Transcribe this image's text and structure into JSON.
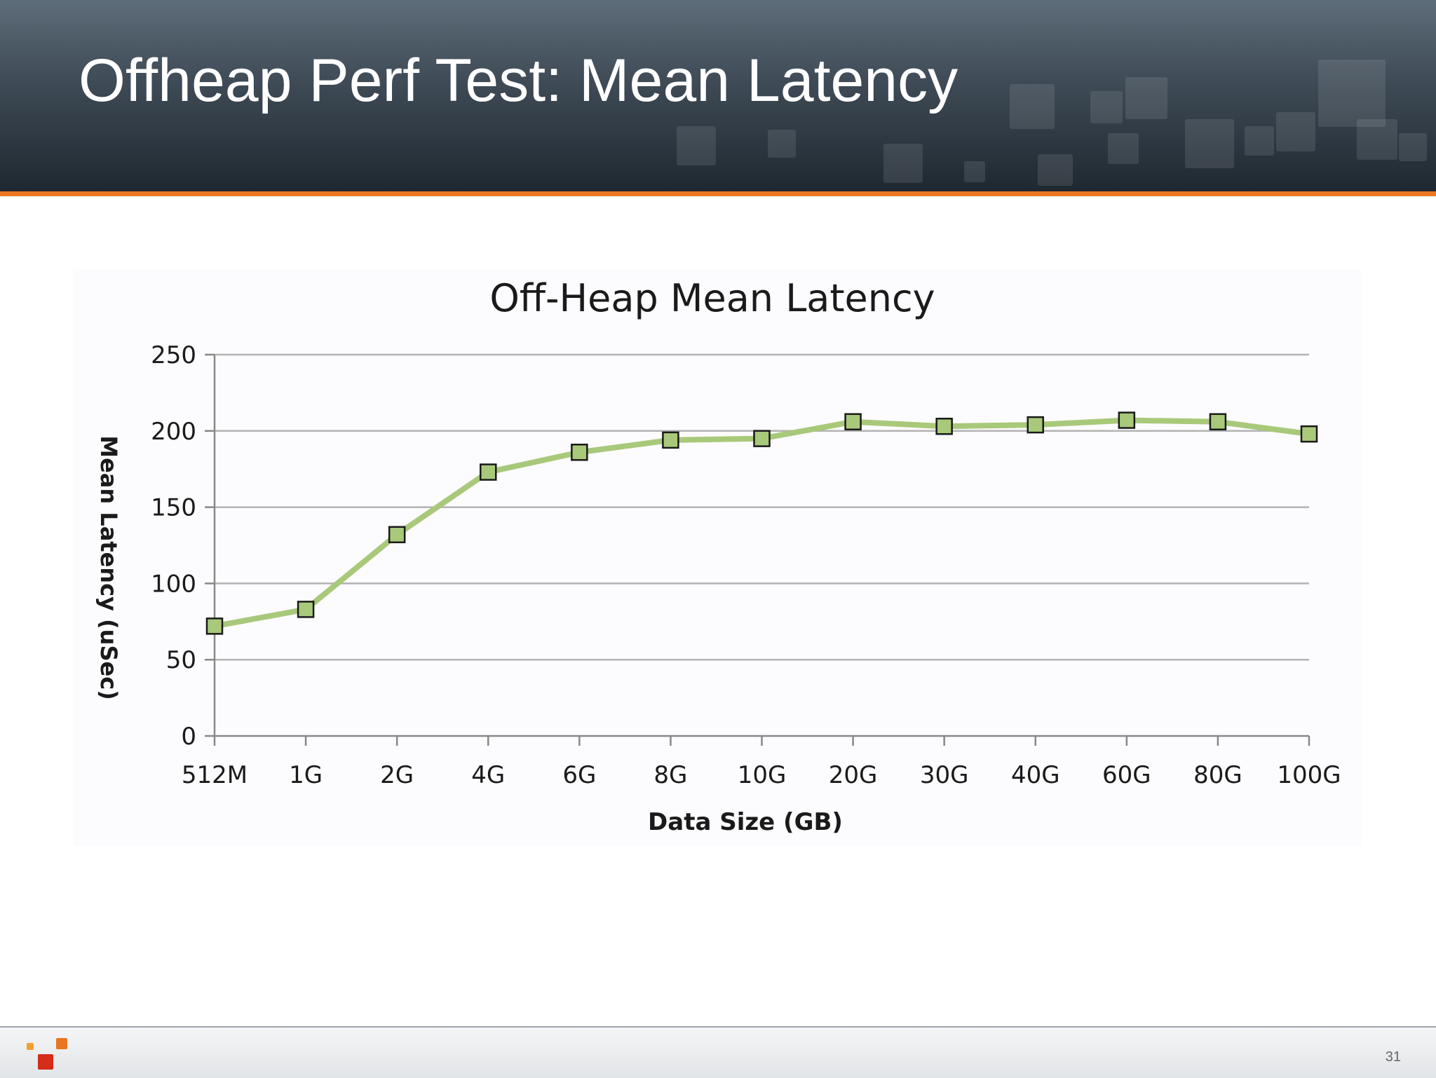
{
  "slide": {
    "title": "Offheap Perf Test: Mean Latency",
    "page_number": "31"
  },
  "colors": {
    "header_top": "#5e6d7a",
    "header_bottom": "#1f2830",
    "accent": "#e87722",
    "line": "#a8c97a",
    "marker_fill": "#a8c97a",
    "marker_stroke": "#1a1a1a",
    "grid": "#b3b3b3"
  },
  "chart_data": {
    "type": "line",
    "title": "Off-Heap Mean Latency",
    "xlabel": "Data Size (GB)",
    "ylabel": "Mean Latency (uSec)",
    "categories": [
      "512M",
      "1G",
      "2G",
      "4G",
      "6G",
      "8G",
      "10G",
      "20G",
      "30G",
      "40G",
      "60G",
      "80G",
      "100G"
    ],
    "series": [
      {
        "values": [
          72,
          83,
          132,
          173,
          186,
          194,
          195,
          206,
          203,
          204,
          207,
          206,
          198
        ]
      }
    ],
    "ylim": [
      0,
      250
    ],
    "yticks": [
      0,
      50,
      100,
      150,
      200,
      250
    ],
    "grid": "horizontal",
    "legend": "none",
    "marker": "square"
  }
}
